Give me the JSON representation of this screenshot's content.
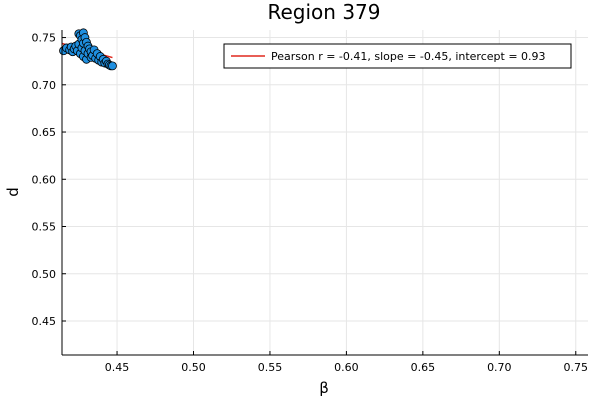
{
  "chart_data": {
    "type": "scatter",
    "title": "Region 379",
    "xlabel": "β",
    "ylabel": "d",
    "xlim": [
      0.414,
      0.758
    ],
    "ylim": [
      0.414,
      0.758
    ],
    "xticks": [
      "0.45",
      "0.50",
      "0.55",
      "0.60",
      "0.65",
      "0.70",
      "0.75"
    ],
    "yticks": [
      "0.45",
      "0.50",
      "0.55",
      "0.60",
      "0.65",
      "0.70",
      "0.75"
    ],
    "grid": true,
    "legend_position": "top-right",
    "colors": {
      "points": "#1f8fe0",
      "point_edge": "#000000",
      "fit_line": "#e0281e"
    },
    "series": [
      {
        "type": "scatter",
        "points": [
          [
            0.415,
            0.736
          ],
          [
            0.417,
            0.739
          ],
          [
            0.419,
            0.737
          ],
          [
            0.42,
            0.74
          ],
          [
            0.421,
            0.735
          ],
          [
            0.422,
            0.738
          ],
          [
            0.423,
            0.741
          ],
          [
            0.424,
            0.736
          ],
          [
            0.425,
            0.743
          ],
          [
            0.425,
            0.754
          ],
          [
            0.426,
            0.752
          ],
          [
            0.426,
            0.733
          ],
          [
            0.427,
            0.748
          ],
          [
            0.427,
            0.739
          ],
          [
            0.428,
            0.755
          ],
          [
            0.428,
            0.744
          ],
          [
            0.428,
            0.73
          ],
          [
            0.429,
            0.75
          ],
          [
            0.429,
            0.736
          ],
          [
            0.43,
            0.745
          ],
          [
            0.43,
            0.727
          ],
          [
            0.431,
            0.741
          ],
          [
            0.431,
            0.733
          ],
          [
            0.432,
            0.738
          ],
          [
            0.433,
            0.729
          ],
          [
            0.433,
            0.735
          ],
          [
            0.434,
            0.731
          ],
          [
            0.435,
            0.737
          ],
          [
            0.436,
            0.728
          ],
          [
            0.437,
            0.733
          ],
          [
            0.438,
            0.726
          ],
          [
            0.439,
            0.73
          ],
          [
            0.44,
            0.724
          ],
          [
            0.441,
            0.727
          ],
          [
            0.442,
            0.723
          ],
          [
            0.443,
            0.725
          ],
          [
            0.444,
            0.722
          ],
          [
            0.445,
            0.721
          ],
          [
            0.446,
            0.72
          ],
          [
            0.447,
            0.72
          ]
        ]
      },
      {
        "name": "Pearson r = -0.41, slope = -0.45, intercept = 0.93",
        "type": "line",
        "slope": -0.45,
        "intercept": 0.93,
        "x_range": [
          0.414,
          0.447
        ]
      }
    ]
  }
}
